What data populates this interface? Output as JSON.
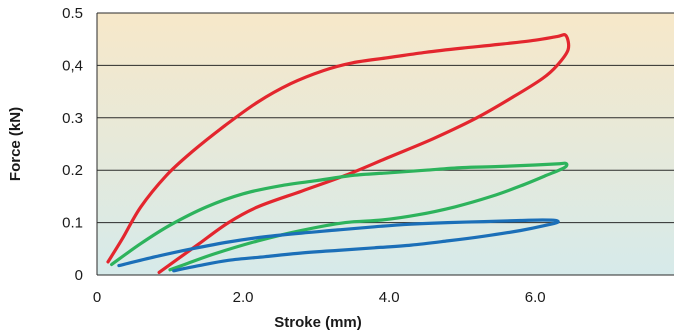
{
  "chart_data": {
    "type": "line",
    "title": "",
    "xlabel": "Stroke (mm)",
    "ylabel": "Force (kN)",
    "xlim": [
      0,
      7.9
    ],
    "ylim": [
      0,
      0.5
    ],
    "x_ticks": [
      {
        "value": 0,
        "label": "0"
      },
      {
        "value": 2,
        "label": "2.0"
      },
      {
        "value": 4,
        "label": "4.0"
      },
      {
        "value": 6,
        "label": "6.0"
      }
    ],
    "y_ticks": [
      {
        "value": 0,
        "label": "0"
      },
      {
        "value": 0.1,
        "label": "0.1"
      },
      {
        "value": 0.2,
        "label": "0.2"
      },
      {
        "value": 0.3,
        "label": "0.3"
      },
      {
        "value": 0.4,
        "label": "0,4"
      },
      {
        "value": 0.5,
        "label": "0.5"
      }
    ],
    "grid": true,
    "background_gradient": {
      "top": "#f7e8c9",
      "bottom": "#d6eaea"
    },
    "series": [
      {
        "color": "#e3262e",
        "x": [
          0.15,
          0.35,
          0.6,
          0.95,
          1.3,
          1.75,
          2.2,
          2.65,
          3.1,
          3.5,
          4.0,
          4.5,
          5.0,
          5.5,
          6.0,
          6.3,
          6.42,
          6.45,
          6.3,
          6.1,
          5.7,
          5.2,
          4.6,
          4.0,
          3.4,
          2.8,
          2.2,
          1.8,
          1.4,
          1.1,
          0.85
        ],
        "y": [
          0.025,
          0.07,
          0.13,
          0.19,
          0.235,
          0.285,
          0.33,
          0.365,
          0.39,
          0.405,
          0.415,
          0.425,
          0.433,
          0.44,
          0.448,
          0.455,
          0.457,
          0.43,
          0.4,
          0.375,
          0.34,
          0.3,
          0.26,
          0.225,
          0.19,
          0.16,
          0.13,
          0.1,
          0.06,
          0.03,
          0.005
        ]
      },
      {
        "color": "#2db35c",
        "x": [
          0.2,
          0.6,
          1.0,
          1.5,
          2.0,
          2.5,
          3.0,
          3.5,
          4.0,
          4.5,
          5.0,
          5.5,
          6.0,
          6.3,
          6.42,
          6.4,
          6.15,
          5.8,
          5.4,
          4.9,
          4.4,
          3.9,
          3.4,
          2.8,
          2.2,
          1.6,
          1.2,
          1.0
        ],
        "y": [
          0.02,
          0.06,
          0.095,
          0.13,
          0.155,
          0.17,
          0.18,
          0.19,
          0.195,
          0.2,
          0.205,
          0.207,
          0.21,
          0.212,
          0.213,
          0.205,
          0.19,
          0.17,
          0.15,
          0.13,
          0.115,
          0.105,
          0.1,
          0.085,
          0.065,
          0.04,
          0.02,
          0.01
        ]
      },
      {
        "color": "#1b6fb8",
        "x": [
          0.3,
          0.8,
          1.3,
          1.8,
          2.3,
          2.8,
          3.3,
          3.8,
          4.3,
          4.8,
          5.3,
          5.8,
          6.1,
          6.28,
          6.3,
          6.12,
          5.8,
          5.3,
          4.8,
          4.3,
          3.8,
          3.3,
          2.8,
          2.3,
          1.8,
          1.4,
          1.05
        ],
        "y": [
          0.018,
          0.035,
          0.05,
          0.063,
          0.073,
          0.08,
          0.086,
          0.092,
          0.097,
          0.1,
          0.102,
          0.104,
          0.105,
          0.104,
          0.1,
          0.094,
          0.085,
          0.074,
          0.065,
          0.057,
          0.052,
          0.047,
          0.042,
          0.035,
          0.028,
          0.018,
          0.008
        ]
      }
    ]
  }
}
